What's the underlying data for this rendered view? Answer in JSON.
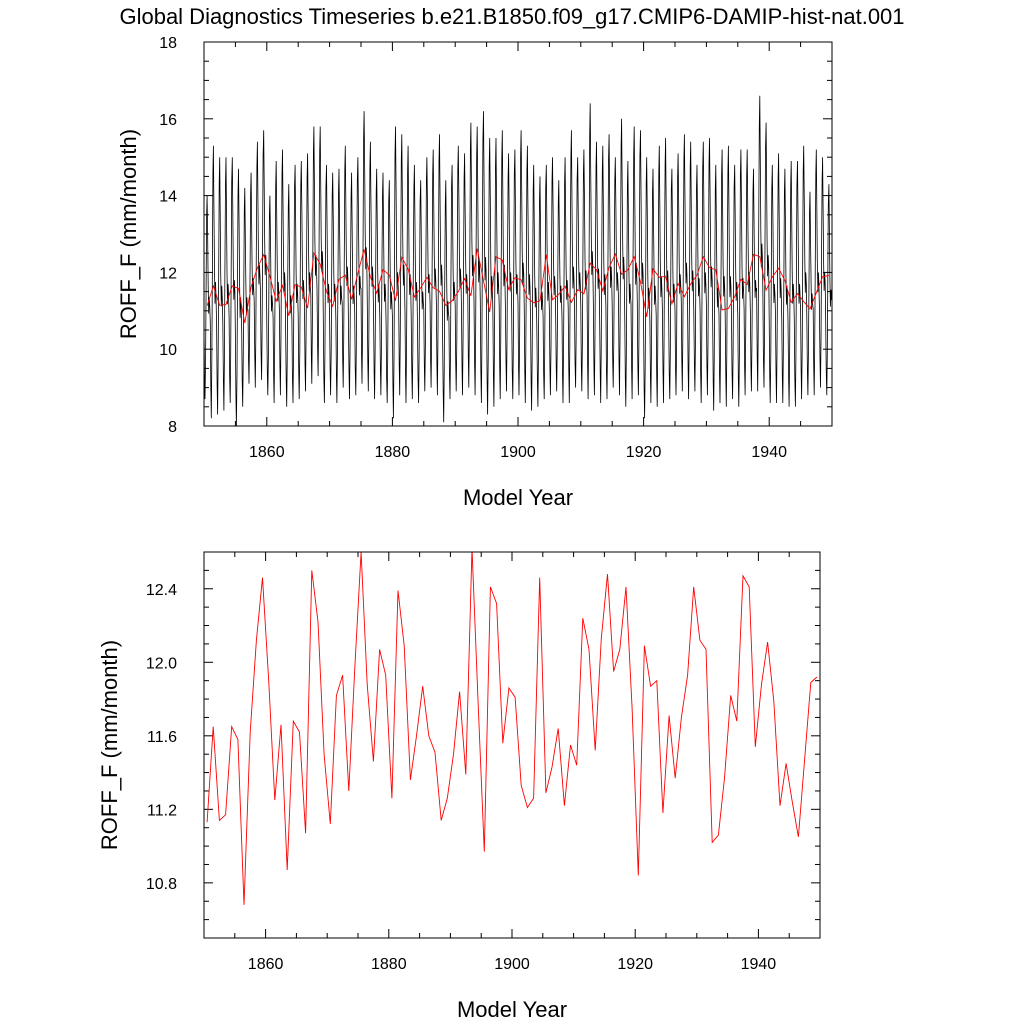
{
  "figure": {
    "title": "Global Diagnostics Timeseries b.e21.B1850.f09_g17.CMIP6-DAMIP-hist-nat.001"
  },
  "colors": {
    "monthly_line": "#000000",
    "annual_line": "#ff0000",
    "axis": "#000000"
  },
  "chart_data": [
    {
      "type": "line",
      "title": "",
      "xlabel": "Model Year",
      "ylabel": "ROFF_F (mm/month)",
      "xlim": [
        1850,
        1950
      ],
      "ylim": [
        8,
        18
      ],
      "x_ticks": [
        1860,
        1880,
        1900,
        1920,
        1940
      ],
      "y_ticks": [
        8,
        10,
        12,
        14,
        16,
        18
      ],
      "grid": false,
      "series": [
        {
          "kind": "monthly",
          "x_start": 1850.0,
          "x_step_years": 0.0833333,
          "cycle_peak_by_year": [
            14.0,
            15.3,
            15.0,
            15.0,
            15.0,
            14.7,
            14.2,
            14.6,
            15.4,
            15.7,
            14.0,
            14.9,
            15.2,
            14.3,
            14.8,
            14.9,
            15.1,
            15.8,
            15.8,
            14.8,
            14.6,
            14.7,
            15.3,
            14.6,
            15.0,
            16.2,
            15.4,
            14.7,
            14.6,
            14.4,
            15.8,
            15.6,
            15.3,
            14.8,
            14.4,
            15.0,
            15.2,
            15.6,
            14.4,
            14.8,
            15.3,
            15.1,
            15.9,
            15.8,
            16.2,
            15.5,
            15.5,
            15.7,
            15.1,
            15.2,
            15.7,
            15.3,
            14.8,
            14.5,
            14.8,
            15.0,
            14.4,
            15.0,
            15.7,
            15.0,
            15.2,
            16.4,
            15.4,
            15.3,
            15.6,
            15.0,
            16.0,
            14.9,
            15.8,
            15.7,
            15.0,
            14.7,
            15.3,
            15.5,
            14.7,
            15.1,
            15.6,
            15.4,
            14.8,
            15.4,
            15.5,
            14.8,
            15.2,
            15.3,
            14.8,
            15.2,
            15.2,
            14.7,
            16.6,
            15.9,
            14.8,
            15.1,
            14.7,
            14.9,
            14.9,
            15.3,
            14.1,
            15.2,
            15.0,
            14.3
          ],
          "cycle_trough_by_year": [
            8.7,
            8.2,
            8.3,
            8.4,
            8.6,
            8.0,
            8.5,
            9.1,
            9.0,
            9.2,
            8.8,
            8.6,
            8.8,
            8.5,
            8.6,
            8.7,
            8.9,
            9.1,
            9.3,
            8.6,
            8.8,
            8.6,
            9.0,
            8.7,
            8.8,
            9.1,
            8.9,
            8.7,
            8.8,
            8.6,
            8.2,
            8.8,
            8.6,
            8.7,
            8.6,
            8.9,
            9.0,
            8.8,
            8.1,
            8.7,
            8.9,
            8.8,
            9.0,
            8.8,
            8.6,
            8.3,
            8.5,
            8.7,
            8.9,
            8.7,
            8.8,
            8.6,
            8.4,
            8.5,
            8.7,
            8.8,
            8.9,
            8.6,
            8.6,
            9.0,
            8.9,
            8.7,
            8.8,
            8.6,
            8.7,
            9.0,
            8.8,
            8.5,
            8.7,
            8.8,
            8.2,
            8.6,
            8.5,
            8.6,
            8.7,
            8.8,
            8.9,
            8.7,
            8.9,
            8.6,
            8.8,
            8.4,
            8.6,
            8.5,
            8.7,
            8.5,
            8.8,
            8.9,
            8.9,
            9.0,
            8.6,
            8.6,
            8.6,
            8.5,
            8.5,
            8.7,
            8.8,
            8.8,
            9.0,
            8.8
          ]
        },
        {
          "kind": "annual",
          "x": [
            1850.5,
            1851.5,
            1852.5,
            1853.5,
            1854.5,
            1855.5,
            1856.5,
            1857.5,
            1858.5,
            1859.5,
            1860.5,
            1861.5,
            1862.5,
            1863.5,
            1864.5,
            1865.5,
            1866.5,
            1867.5,
            1868.5,
            1869.5,
            1870.5,
            1871.5,
            1872.5,
            1873.5,
            1874.5,
            1875.5,
            1876.5,
            1877.5,
            1878.5,
            1879.5,
            1880.5,
            1881.5,
            1882.5,
            1883.5,
            1884.5,
            1885.5,
            1886.5,
            1887.5,
            1888.5,
            1889.5,
            1890.5,
            1891.5,
            1892.5,
            1893.5,
            1894.5,
            1895.5,
            1896.5,
            1897.5,
            1898.5,
            1899.5,
            1900.5,
            1901.5,
            1902.5,
            1903.5,
            1904.5,
            1905.5,
            1906.5,
            1907.5,
            1908.5,
            1909.5,
            1910.5,
            1911.5,
            1912.5,
            1913.5,
            1914.5,
            1915.5,
            1916.5,
            1917.5,
            1918.5,
            1919.5,
            1920.5,
            1921.5,
            1922.5,
            1923.5,
            1924.5,
            1925.5,
            1926.5,
            1927.5,
            1928.5,
            1929.5,
            1930.5,
            1931.5,
            1932.5,
            1933.5,
            1934.5,
            1935.5,
            1936.5,
            1937.5,
            1938.5,
            1939.5,
            1940.5,
            1941.5,
            1942.5,
            1943.5,
            1944.5,
            1945.5,
            1946.5,
            1947.5,
            1948.5,
            1949.5
          ],
          "y": [
            11.13,
            11.65,
            11.14,
            11.17,
            11.65,
            11.58,
            10.68,
            11.62,
            12.12,
            12.46,
            11.9,
            11.25,
            11.66,
            10.87,
            11.68,
            11.62,
            11.07,
            12.5,
            12.22,
            11.5,
            11.12,
            11.82,
            11.93,
            11.3,
            11.98,
            12.6,
            11.88,
            11.46,
            12.07,
            11.93,
            11.26,
            12.39,
            12.09,
            11.36,
            11.6,
            11.87,
            11.6,
            11.51,
            11.14,
            11.26,
            11.5,
            11.84,
            11.39,
            12.62,
            11.78,
            10.97,
            12.41,
            12.32,
            11.56,
            11.86,
            11.81,
            11.33,
            11.21,
            11.26,
            12.46,
            11.29,
            11.43,
            11.64,
            11.22,
            11.55,
            11.44,
            12.24,
            12.07,
            11.52,
            12.13,
            12.48,
            11.95,
            12.07,
            12.41,
            11.75,
            10.84,
            12.09,
            11.87,
            11.9,
            11.18,
            11.71,
            11.37,
            11.7,
            11.93,
            12.41,
            12.12,
            12.07,
            11.02,
            11.06,
            11.37,
            11.82,
            11.68,
            12.47,
            12.41,
            11.54,
            11.88,
            12.11,
            11.79,
            11.22,
            11.45,
            11.24,
            11.05,
            11.47,
            11.89,
            11.92
          ]
        }
      ]
    },
    {
      "type": "line",
      "title": "",
      "xlabel": "Model Year",
      "ylabel": "ROFF_F (mm/month)",
      "xlim": [
        1850,
        1950
      ],
      "ylim": [
        10.5,
        12.6
      ],
      "x_ticks": [
        1860,
        1880,
        1900,
        1920,
        1940
      ],
      "y_ticks": [
        10.8,
        11.2,
        11.6,
        12.0,
        12.4
      ],
      "y_tick_labels": [
        "10.8",
        "11.2",
        "11.6",
        "12.0",
        "12.4"
      ],
      "grid": false,
      "series": [
        {
          "kind": "annual",
          "x": [
            1850.5,
            1851.5,
            1852.5,
            1853.5,
            1854.5,
            1855.5,
            1856.5,
            1857.5,
            1858.5,
            1859.5,
            1860.5,
            1861.5,
            1862.5,
            1863.5,
            1864.5,
            1865.5,
            1866.5,
            1867.5,
            1868.5,
            1869.5,
            1870.5,
            1871.5,
            1872.5,
            1873.5,
            1874.5,
            1875.5,
            1876.5,
            1877.5,
            1878.5,
            1879.5,
            1880.5,
            1881.5,
            1882.5,
            1883.5,
            1884.5,
            1885.5,
            1886.5,
            1887.5,
            1888.5,
            1889.5,
            1890.5,
            1891.5,
            1892.5,
            1893.5,
            1894.5,
            1895.5,
            1896.5,
            1897.5,
            1898.5,
            1899.5,
            1900.5,
            1901.5,
            1902.5,
            1903.5,
            1904.5,
            1905.5,
            1906.5,
            1907.5,
            1908.5,
            1909.5,
            1910.5,
            1911.5,
            1912.5,
            1913.5,
            1914.5,
            1915.5,
            1916.5,
            1917.5,
            1918.5,
            1919.5,
            1920.5,
            1921.5,
            1922.5,
            1923.5,
            1924.5,
            1925.5,
            1926.5,
            1927.5,
            1928.5,
            1929.5,
            1930.5,
            1931.5,
            1932.5,
            1933.5,
            1934.5,
            1935.5,
            1936.5,
            1937.5,
            1938.5,
            1939.5,
            1940.5,
            1941.5,
            1942.5,
            1943.5,
            1944.5,
            1945.5,
            1946.5,
            1947.5,
            1948.5,
            1949.5
          ],
          "y": [
            11.13,
            11.65,
            11.14,
            11.17,
            11.65,
            11.58,
            10.68,
            11.62,
            12.12,
            12.46,
            11.9,
            11.25,
            11.66,
            10.87,
            11.68,
            11.62,
            11.07,
            12.5,
            12.22,
            11.5,
            11.12,
            11.82,
            11.93,
            11.3,
            11.98,
            12.6,
            11.88,
            11.46,
            12.07,
            11.93,
            11.26,
            12.39,
            12.09,
            11.36,
            11.6,
            11.87,
            11.6,
            11.51,
            11.14,
            11.26,
            11.5,
            11.84,
            11.39,
            12.62,
            11.78,
            10.97,
            12.41,
            12.32,
            11.56,
            11.86,
            11.81,
            11.33,
            11.21,
            11.26,
            12.46,
            11.29,
            11.43,
            11.64,
            11.22,
            11.55,
            11.44,
            12.24,
            12.07,
            11.52,
            12.13,
            12.48,
            11.95,
            12.07,
            12.41,
            11.75,
            10.84,
            12.09,
            11.87,
            11.9,
            11.18,
            11.71,
            11.37,
            11.7,
            11.93,
            12.41,
            12.12,
            12.07,
            11.02,
            11.06,
            11.37,
            11.82,
            11.68,
            12.47,
            12.41,
            11.54,
            11.88,
            12.11,
            11.79,
            11.22,
            11.45,
            11.24,
            11.05,
            11.47,
            11.89,
            11.92
          ]
        }
      ]
    }
  ]
}
